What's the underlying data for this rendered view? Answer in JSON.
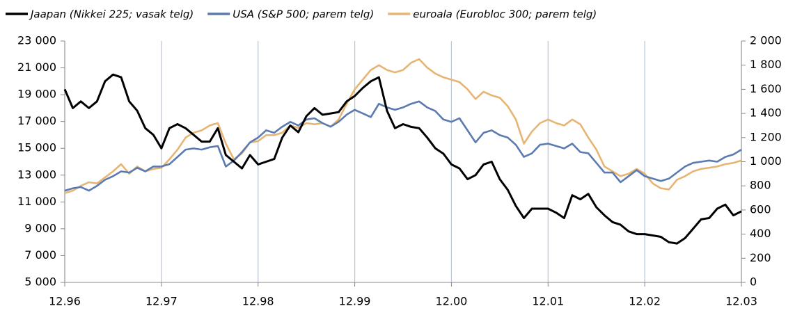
{
  "chart_data": {
    "type": "line",
    "categories": [
      "12.96",
      null,
      null,
      null,
      null,
      null,
      null,
      null,
      null,
      null,
      null,
      null,
      "12.97",
      null,
      null,
      null,
      null,
      null,
      null,
      null,
      null,
      null,
      null,
      null,
      "12.98",
      null,
      null,
      null,
      null,
      null,
      null,
      null,
      null,
      null,
      null,
      null,
      "12.99",
      null,
      null,
      null,
      null,
      null,
      null,
      null,
      null,
      null,
      null,
      null,
      "12.00",
      null,
      null,
      null,
      null,
      null,
      null,
      null,
      null,
      null,
      null,
      null,
      "12.01",
      null,
      null,
      null,
      null,
      null,
      null,
      null,
      null,
      null,
      null,
      null,
      "12.02",
      null,
      null,
      null,
      null,
      null,
      null,
      null,
      null,
      null,
      null,
      null,
      "12.03"
    ],
    "series": [
      {
        "name": "Jaapan (Nikkei 225; vasak telg)",
        "color": "#000000",
        "axis": "y",
        "values": [
          19400,
          18000,
          18500,
          18000,
          18500,
          20000,
          20500,
          20300,
          18500,
          17800,
          16500,
          16000,
          15000,
          16500,
          16800,
          16500,
          16000,
          15500,
          15500,
          16500,
          14500,
          14000,
          13500,
          14500,
          13800,
          14000,
          14200,
          15800,
          16700,
          16200,
          17400,
          18000,
          17500,
          17600,
          17700,
          18500,
          18900,
          19500,
          20000,
          20300,
          17800,
          16500,
          16800,
          16600,
          16500,
          15800,
          15000,
          14600,
          13800,
          13500,
          12700,
          13000,
          13800,
          14000,
          12700,
          11900,
          10700,
          9800,
          10500,
          10500,
          10500,
          10200,
          9800,
          11500,
          11200,
          11600,
          10600,
          10000,
          9500,
          9300,
          8800,
          8600,
          8600,
          8500,
          8400,
          8000,
          7900,
          8300,
          9000,
          9700,
          9800,
          10500,
          10800,
          10000,
          10300
        ]
      },
      {
        "name": "USA (S&P 500; parem telg)",
        "color": "#5b7bb0",
        "axis": "y2",
        "values": [
          760,
          780,
          790,
          760,
          800,
          850,
          880,
          920,
          910,
          950,
          920,
          960,
          960,
          980,
          1040,
          1100,
          1110,
          1100,
          1120,
          1130,
          960,
          1010,
          1080,
          1160,
          1200,
          1260,
          1240,
          1290,
          1330,
          1300,
          1350,
          1360,
          1320,
          1290,
          1330,
          1390,
          1430,
          1400,
          1370,
          1480,
          1450,
          1430,
          1450,
          1480,
          1500,
          1450,
          1420,
          1350,
          1330,
          1360,
          1260,
          1160,
          1240,
          1260,
          1220,
          1200,
          1140,
          1040,
          1070,
          1140,
          1150,
          1130,
          1110,
          1150,
          1080,
          1070,
          990,
          910,
          910,
          830,
          880,
          930,
          880,
          860,
          840,
          860,
          910,
          960,
          990,
          1000,
          1010,
          1000,
          1040,
          1060,
          1100
        ]
      },
      {
        "name": "euroala (Eurobloc 300; parem telg)",
        "color": "#e6b574",
        "axis": "y2",
        "values": [
          740,
          760,
          800,
          830,
          820,
          870,
          920,
          980,
          900,
          960,
          920,
          940,
          950,
          1020,
          1100,
          1200,
          1240,
          1260,
          1300,
          1320,
          1150,
          1020,
          1070,
          1160,
          1170,
          1220,
          1220,
          1240,
          1300,
          1280,
          1320,
          1310,
          1320,
          1290,
          1350,
          1480,
          1600,
          1680,
          1760,
          1800,
          1760,
          1740,
          1760,
          1820,
          1850,
          1780,
          1730,
          1700,
          1680,
          1660,
          1600,
          1520,
          1580,
          1550,
          1530,
          1460,
          1350,
          1150,
          1250,
          1320,
          1350,
          1320,
          1300,
          1350,
          1310,
          1200,
          1100,
          960,
          920,
          880,
          900,
          940,
          900,
          820,
          780,
          770,
          850,
          880,
          920,
          940,
          950,
          960,
          980,
          990,
          1010
        ]
      }
    ],
    "ylim": [
      5000,
      23000
    ],
    "yticks": [
      {
        "value": 5000,
        "label": "5 000"
      },
      {
        "value": 7000,
        "label": "7 000"
      },
      {
        "value": 9000,
        "label": "9 000"
      },
      {
        "value": 11000,
        "label": "11 000"
      },
      {
        "value": 13000,
        "label": "13 000"
      },
      {
        "value": 15000,
        "label": "15 000"
      },
      {
        "value": 17000,
        "label": "17 000"
      },
      {
        "value": 19000,
        "label": "19 000"
      },
      {
        "value": 21000,
        "label": "21 000"
      },
      {
        "value": 23000,
        "label": "23 000"
      }
    ],
    "y2lim": [
      0,
      2000
    ],
    "y2ticks": [
      0,
      200,
      400,
      600,
      800,
      {
        "value": 1000,
        "label": "1 000"
      },
      {
        "value": 1200,
        "label": "1 200"
      },
      {
        "value": 1400,
        "label": "1 400"
      },
      {
        "value": 1600,
        "label": "1 600"
      },
      {
        "value": 1800,
        "label": "1 800"
      },
      {
        "value": 2000,
        "label": "2 000"
      }
    ],
    "grid": "x"
  }
}
